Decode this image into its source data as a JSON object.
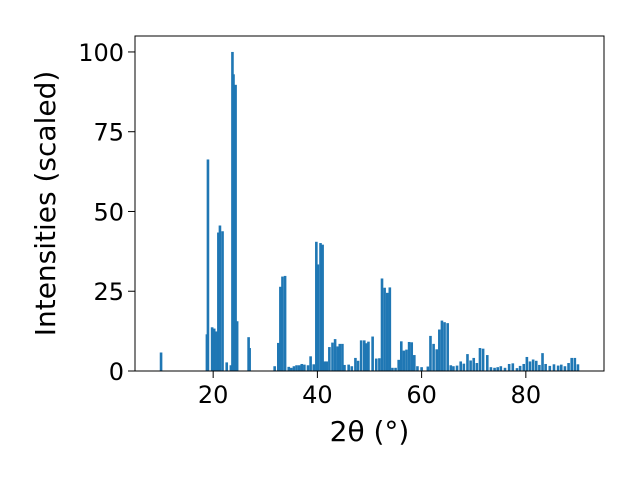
{
  "chart_data": {
    "type": "bar",
    "xlabel": "2θ (°)",
    "ylabel": "Intensities (scaled)",
    "xlim": [
      5,
      95
    ],
    "ylim": [
      0,
      105
    ],
    "xticks": [
      20,
      40,
      60,
      80
    ],
    "yticks": [
      0,
      25,
      50,
      75,
      100
    ],
    "grid": false,
    "bar_color": "#1f77b4",
    "bar_width": 0.5,
    "x": [
      10.0,
      18.8,
      19.0,
      19.8,
      20.2,
      20.6,
      21.0,
      21.3,
      21.8,
      22.6,
      23.4,
      23.7,
      23.9,
      24.3,
      24.6,
      26.8,
      27.0,
      31.8,
      32.5,
      32.9,
      33.3,
      33.8,
      34.5,
      35.0,
      35.5,
      36.0,
      36.5,
      37.0,
      37.5,
      38.2,
      38.7,
      39.3,
      39.8,
      40.1,
      40.6,
      41.0,
      41.4,
      41.8,
      42.3,
      42.9,
      43.4,
      43.9,
      44.3,
      44.8,
      45.2,
      46.0,
      46.6,
      47.3,
      47.8,
      48.4,
      49.0,
      49.4,
      49.8,
      50.6,
      51.3,
      51.9,
      52.4,
      52.9,
      53.4,
      53.9,
      54.4,
      55.0,
      55.6,
      56.1,
      56.6,
      57.1,
      57.6,
      58.1,
      58.6,
      59.2,
      60.0,
      61.2,
      61.7,
      62.3,
      62.9,
      63.4,
      63.9,
      64.4,
      65.0,
      65.6,
      66.1,
      66.8,
      67.5,
      68.1,
      68.8,
      69.4,
      70.0,
      70.6,
      71.2,
      71.8,
      72.6,
      73.3,
      74.0,
      74.6,
      75.2,
      76.0,
      76.8,
      77.5,
      78.3,
      78.9,
      79.6,
      80.2,
      80.8,
      81.4,
      82.0,
      82.6,
      83.2,
      83.8,
      84.6,
      85.4,
      86.2,
      86.8,
      87.5,
      88.2,
      88.8,
      89.4,
      90.0
    ],
    "values": [
      5.8,
      11.5,
      66.3,
      13.7,
      13.3,
      12.4,
      43.4,
      45.6,
      43.8,
      2.7,
      1.8,
      100.0,
      93.0,
      89.7,
      15.6,
      10.6,
      7.2,
      1.5,
      8.8,
      26.4,
      29.6,
      29.8,
      1.3,
      1.0,
      1.5,
      1.8,
      1.8,
      2.2,
      2.0,
      1.8,
      4.6,
      2.1,
      40.5,
      33.4,
      40.1,
      39.6,
      3.0,
      3.0,
      7.5,
      8.9,
      10.0,
      7.7,
      8.5,
      8.5,
      1.9,
      2.0,
      1.5,
      4.1,
      3.2,
      9.6,
      9.6,
      8.7,
      9.2,
      10.8,
      3.9,
      4.0,
      29.0,
      26.1,
      24.5,
      26.2,
      1.0,
      1.0,
      3.5,
      9.3,
      6.4,
      6.7,
      9.1,
      9.0,
      5.0,
      1.5,
      1.2,
      1.4,
      11.0,
      8.5,
      6.8,
      13.0,
      15.8,
      15.3,
      15.0,
      1.8,
      1.5,
      1.7,
      3.0,
      2.3,
      5.3,
      3.3,
      4.1,
      2.5,
      7.2,
      7.0,
      5.0,
      1.2,
      1.0,
      1.2,
      1.5,
      1.0,
      2.2,
      2.4,
      0.9,
      1.6,
      2.2,
      4.4,
      3.0,
      3.6,
      3.2,
      1.9,
      5.6,
      2.2,
      1.6,
      2.1,
      1.7,
      2.0,
      1.5,
      2.5,
      4.1,
      4.1,
      2.1
    ]
  }
}
